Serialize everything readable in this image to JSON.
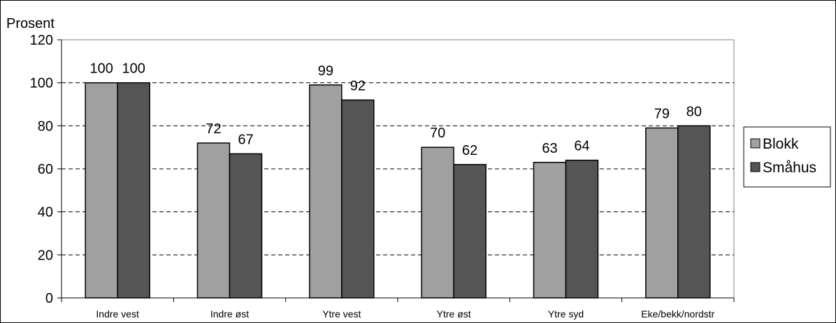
{
  "chart_data": {
    "type": "bar",
    "ylabel": "Prosent",
    "categories": [
      "Indre vest",
      "Indre øst",
      "Ytre vest",
      "Ytre øst",
      "Ytre syd",
      "Eke/bekk/nordstr"
    ],
    "series": [
      {
        "name": "Blokk",
        "values": [
          100,
          72,
          99,
          70,
          63,
          79
        ],
        "color": "#a0a0a0"
      },
      {
        "name": "Småhus",
        "values": [
          100,
          67,
          92,
          62,
          64,
          80
        ],
        "color": "#555555"
      }
    ],
    "ylim": [
      0,
      120
    ],
    "yticks": [
      0,
      20,
      40,
      60,
      80,
      100,
      120
    ],
    "grid": true,
    "legend": "right"
  }
}
